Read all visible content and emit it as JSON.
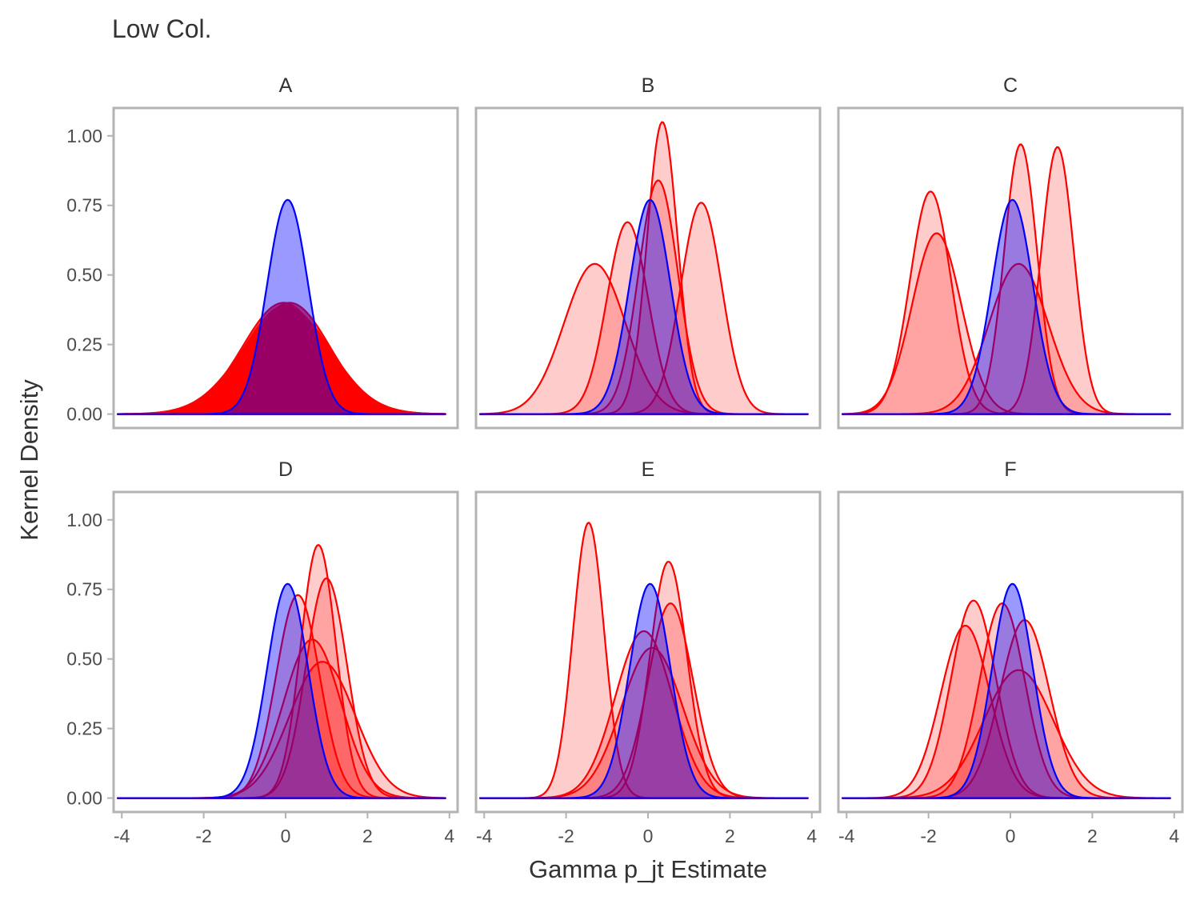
{
  "chart_data": {
    "type": "area",
    "title": "Low Col.",
    "xlabel": "Gamma p_jt Estimate",
    "ylabel": "Kernel Density",
    "xlim": [
      -4.2,
      4.2
    ],
    "ylim": [
      -0.05,
      1.1
    ],
    "x_ticks": [
      -4,
      -2,
      0,
      2,
      4
    ],
    "x_tick_labels": [
      "-4",
      "-2",
      "0",
      "2",
      "4"
    ],
    "y_ticks": [
      0,
      0.25,
      0.5,
      0.75,
      1.0
    ],
    "y_tick_labels": [
      "0.00",
      "0.25",
      "0.50",
      "0.75",
      "1.00"
    ],
    "x_range": [
      -4.1,
      3.9
    ],
    "grid": false,
    "legend": "none",
    "colors": {
      "red_line": "#ff0000",
      "red_fill": "#ff0000",
      "blue_line": "#0000ff",
      "blue_fill": "#0000ff",
      "panel_border": "#b3b3b3"
    },
    "panels": [
      {
        "label": "A",
        "red_fill_opacity": 0.7,
        "red_curves": [
          {
            "mean": 0.0,
            "sd": 1.02,
            "peak": 0.39
          },
          {
            "mean": -0.05,
            "sd": 1.0,
            "peak": 0.4
          },
          {
            "mean": 0.05,
            "sd": 1.05,
            "peak": 0.38
          },
          {
            "mean": 0.0,
            "sd": 1.08,
            "peak": 0.37
          },
          {
            "mean": 0.1,
            "sd": 0.98,
            "peak": 0.4
          }
        ],
        "blue_curve": {
          "mean": 0.05,
          "sd": 0.5,
          "peak": 0.77
        }
      },
      {
        "label": "B",
        "red_fill_opacity": 0.2,
        "red_curves": [
          {
            "mean": -1.3,
            "sd": 0.75,
            "peak": 0.54
          },
          {
            "mean": -0.5,
            "sd": 0.5,
            "peak": 0.69
          },
          {
            "mean": 0.35,
            "sd": 0.37,
            "peak": 1.05
          },
          {
            "mean": 0.25,
            "sd": 0.48,
            "peak": 0.84
          },
          {
            "mean": 1.3,
            "sd": 0.5,
            "peak": 0.76
          }
        ],
        "blue_curve": {
          "mean": 0.05,
          "sd": 0.5,
          "peak": 0.77
        }
      },
      {
        "label": "C",
        "red_fill_opacity": 0.2,
        "red_curves": [
          {
            "mean": -1.95,
            "sd": 0.5,
            "peak": 0.8
          },
          {
            "mean": -1.8,
            "sd": 0.6,
            "peak": 0.65
          },
          {
            "mean": 0.25,
            "sd": 0.4,
            "peak": 0.97
          },
          {
            "mean": 0.2,
            "sd": 0.72,
            "peak": 0.54
          },
          {
            "mean": 1.15,
            "sd": 0.4,
            "peak": 0.96
          }
        ],
        "blue_curve": {
          "mean": 0.05,
          "sd": 0.5,
          "peak": 0.77
        }
      },
      {
        "label": "D",
        "red_fill_opacity": 0.2,
        "red_curves": [
          {
            "mean": 0.3,
            "sd": 0.53,
            "peak": 0.73
          },
          {
            "mean": 0.8,
            "sd": 0.43,
            "peak": 0.91
          },
          {
            "mean": 1.0,
            "sd": 0.5,
            "peak": 0.79
          },
          {
            "mean": 0.65,
            "sd": 0.7,
            "peak": 0.57
          },
          {
            "mean": 0.9,
            "sd": 0.8,
            "peak": 0.49
          }
        ],
        "blue_curve": {
          "mean": 0.05,
          "sd": 0.5,
          "peak": 0.77
        }
      },
      {
        "label": "E",
        "red_fill_opacity": 0.2,
        "red_curves": [
          {
            "mean": -1.45,
            "sd": 0.38,
            "peak": 0.99
          },
          {
            "mean": -0.1,
            "sd": 0.7,
            "peak": 0.6
          },
          {
            "mean": 0.1,
            "sd": 0.75,
            "peak": 0.54
          },
          {
            "mean": 0.5,
            "sd": 0.45,
            "peak": 0.85
          },
          {
            "mean": 0.55,
            "sd": 0.55,
            "peak": 0.7
          }
        ],
        "blue_curve": {
          "mean": 0.05,
          "sd": 0.5,
          "peak": 0.77
        }
      },
      {
        "label": "F",
        "red_fill_opacity": 0.2,
        "red_curves": [
          {
            "mean": -1.1,
            "sd": 0.6,
            "peak": 0.62
          },
          {
            "mean": -0.9,
            "sd": 0.55,
            "peak": 0.71
          },
          {
            "mean": -0.2,
            "sd": 0.55,
            "peak": 0.7
          },
          {
            "mean": 0.35,
            "sd": 0.6,
            "peak": 0.64
          },
          {
            "mean": 0.2,
            "sd": 0.85,
            "peak": 0.46
          }
        ],
        "blue_curve": {
          "mean": 0.05,
          "sd": 0.5,
          "peak": 0.77
        }
      }
    ]
  }
}
